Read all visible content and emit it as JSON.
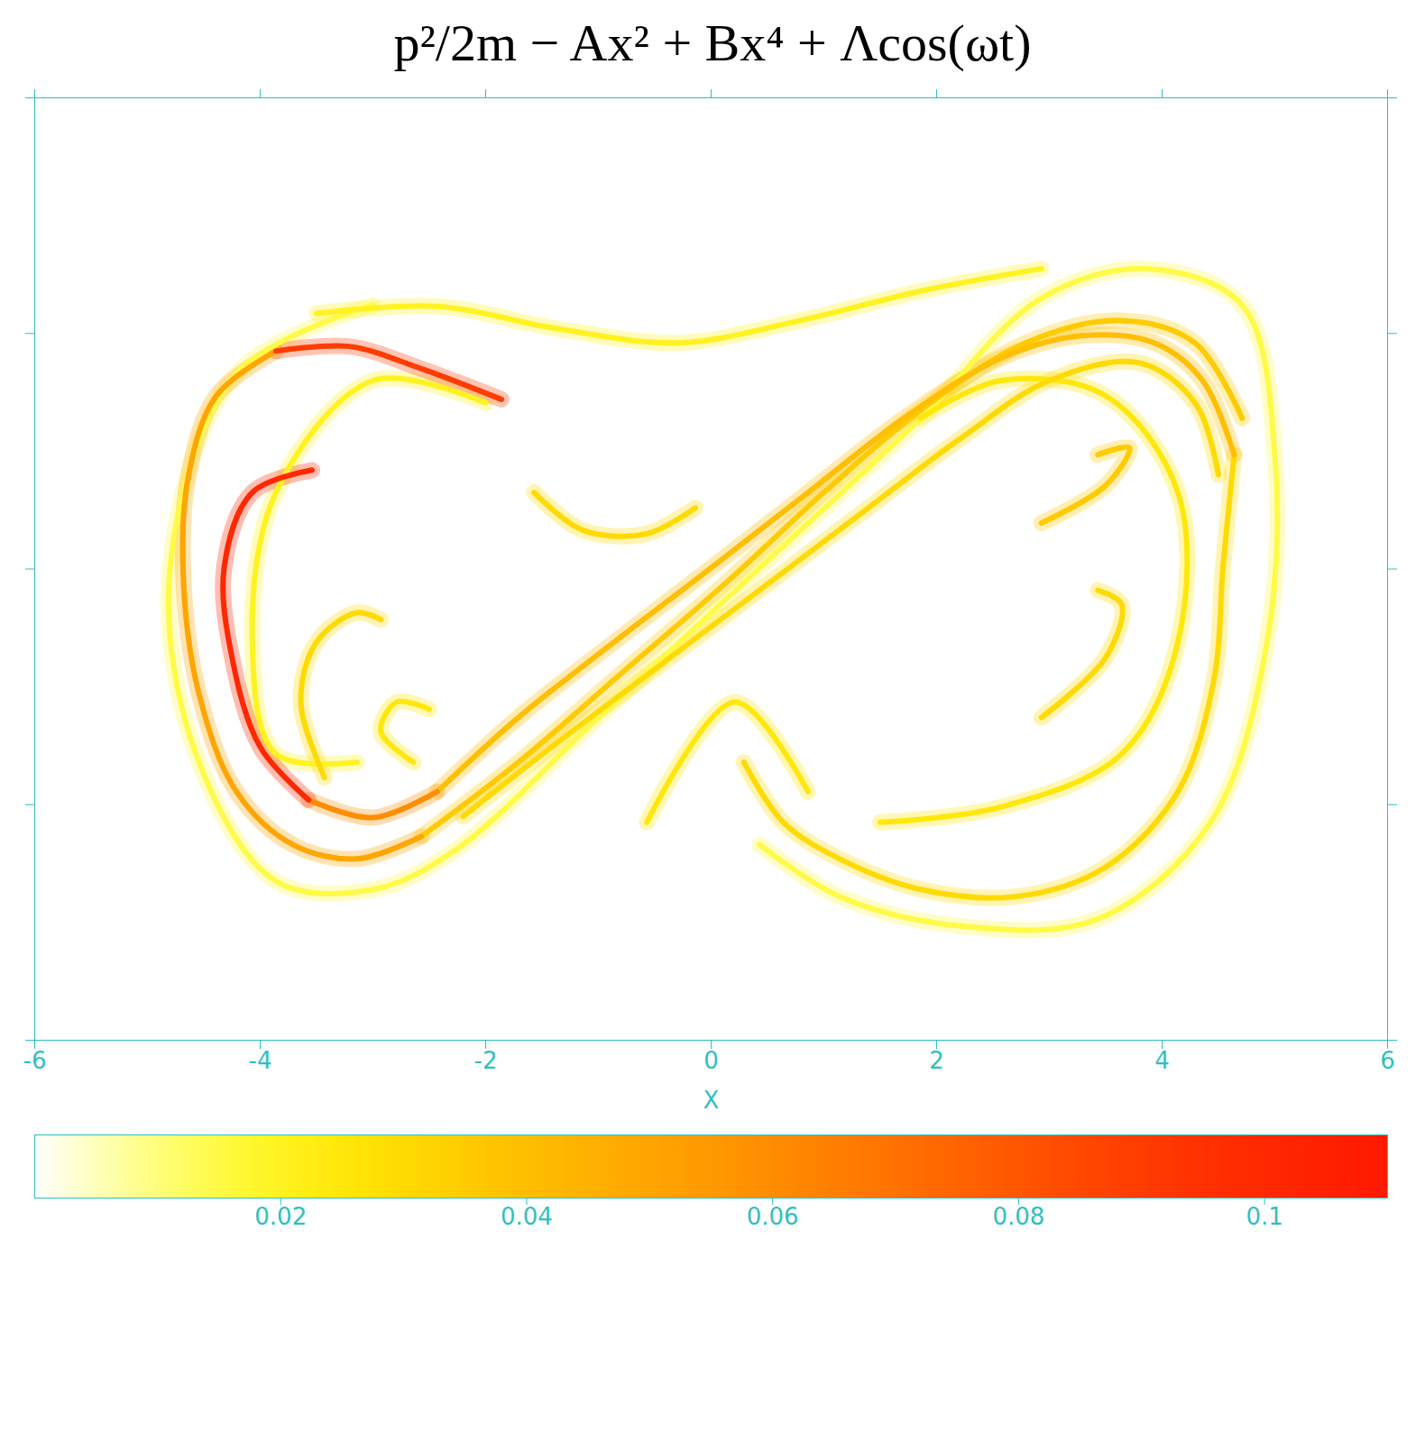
{
  "chart_data": {
    "type": "density",
    "title": "p²/2m − Ax² + Bx⁴ + Λcos(ωt)",
    "x_label": "X",
    "xlim": [
      -6,
      6
    ],
    "xticks": [
      -6,
      -4,
      -2,
      0,
      2,
      4,
      6
    ],
    "ylim": [
      -4,
      4
    ],
    "yticks": [
      -4,
      -2,
      0,
      2,
      4
    ],
    "tick_labels": "x",
    "colorbar": {
      "range": [
        0,
        0.11
      ],
      "ticks": [
        0.02,
        0.04,
        0.06,
        0.08,
        0.1
      ]
    },
    "curves": [
      {
        "value": 0.015,
        "points": [
          [
            -3.0,
            2.24
          ],
          [
            -4.21,
            1.66
          ],
          [
            -4.8,
            0.01
          ],
          [
            -4.57,
            -1.57
          ],
          [
            -3.86,
            -2.65
          ],
          [
            -3.0,
            -2.72
          ],
          [
            -2.29,
            -2.4
          ],
          [
            -1.0,
            -1.26
          ],
          [
            0.43,
            0.01
          ],
          [
            1.86,
            1.28
          ],
          [
            2.93,
            2.3
          ],
          [
            3.86,
            2.55
          ],
          [
            4.71,
            2.24
          ],
          [
            5.0,
            0.97
          ],
          [
            4.93,
            -0.62
          ],
          [
            4.43,
            -2.15
          ],
          [
            3.43,
            -2.97
          ],
          [
            2.21,
            -3.03
          ],
          [
            1.14,
            -2.78
          ],
          [
            0.43,
            -2.34
          ]
        ]
      },
      {
        "value": 0.02,
        "points": [
          [
            -3.5,
            2.17
          ],
          [
            -2.43,
            2.23
          ],
          [
            -1.36,
            2.04
          ],
          [
            -0.29,
            1.92
          ],
          [
            0.79,
            2.11
          ],
          [
            1.86,
            2.36
          ],
          [
            2.93,
            2.55
          ]
        ]
      },
      {
        "value": 0.02,
        "points": [
          [
            -3.14,
            -1.64
          ],
          [
            -3.86,
            -1.57
          ],
          [
            -4.07,
            -0.62
          ],
          [
            -3.86,
            0.65
          ],
          [
            -3.0,
            1.6
          ],
          [
            -2.0,
            1.41
          ]
        ]
      },
      {
        "value": 0.025,
        "points": [
          [
            -2.64,
            -1.64
          ],
          [
            -2.93,
            -1.38
          ],
          [
            -2.79,
            -1.13
          ],
          [
            -2.5,
            -1.19
          ]
        ]
      },
      {
        "value": 0.025,
        "points": [
          [
            -0.57,
            -2.15
          ],
          [
            0.21,
            -1.13
          ],
          [
            0.86,
            -1.89
          ]
        ]
      },
      {
        "value": 0.025,
        "points": [
          [
            1.5,
            -2.15
          ],
          [
            2.57,
            -2.02
          ],
          [
            3.64,
            -1.57
          ],
          [
            4.14,
            -0.62
          ],
          [
            4.14,
            0.65
          ],
          [
            3.5,
            1.47
          ],
          [
            2.57,
            1.6
          ],
          [
            1.86,
            1.28
          ]
        ]
      },
      {
        "value": 0.03,
        "points": [
          [
            4.64,
            0.97
          ],
          [
            4.54,
            0.01
          ],
          [
            4.46,
            -0.94
          ],
          [
            4.14,
            -1.89
          ],
          [
            3.5,
            -2.53
          ],
          [
            2.71,
            -2.78
          ],
          [
            1.86,
            -2.72
          ],
          [
            1.14,
            -2.46
          ],
          [
            0.64,
            -2.15
          ],
          [
            0.29,
            -1.64
          ]
        ]
      },
      {
        "value": 0.03,
        "points": [
          [
            -1.57,
            0.65
          ],
          [
            -1.14,
            0.33
          ],
          [
            -0.57,
            0.3
          ],
          [
            -0.14,
            0.52
          ]
        ]
      },
      {
        "value": 0.03,
        "points": [
          [
            -3.43,
            -1.77
          ],
          [
            -3.64,
            -1.13
          ],
          [
            -3.5,
            -0.62
          ],
          [
            -3.14,
            -0.37
          ],
          [
            -2.93,
            -0.43
          ]
        ]
      },
      {
        "value": 0.03,
        "points": [
          [
            2.93,
            -1.26
          ],
          [
            3.5,
            -0.75
          ],
          [
            3.64,
            -0.3
          ],
          [
            3.43,
            -0.18
          ]
        ]
      },
      {
        "value": 0.03,
        "points": [
          [
            -2.2,
            -2.1
          ],
          [
            -1.4,
            -1.5
          ],
          [
            -0.5,
            -0.85
          ],
          [
            0.4,
            -0.2
          ],
          [
            1.3,
            0.45
          ],
          [
            2.2,
            1.1
          ],
          [
            3.0,
            1.6
          ],
          [
            3.8,
            1.75
          ],
          [
            4.3,
            1.4
          ],
          [
            4.5,
            0.8
          ]
        ]
      },
      {
        "value": 0.035,
        "points": [
          [
            2.93,
            0.39
          ],
          [
            3.5,
            0.71
          ],
          [
            3.71,
            1.03
          ],
          [
            3.43,
            0.97
          ]
        ]
      },
      {
        "value": 0.035,
        "points": [
          [
            -2.57,
            -2.27
          ],
          [
            -1.71,
            -1.64
          ],
          [
            -0.79,
            -0.88
          ],
          [
            0.14,
            -0.11
          ],
          [
            1.0,
            0.65
          ],
          [
            1.86,
            1.35
          ],
          [
            2.79,
            1.92
          ],
          [
            3.64,
            2.11
          ],
          [
            4.29,
            1.92
          ],
          [
            4.71,
            1.28
          ]
        ]
      },
      {
        "value": 0.04,
        "points": [
          [
            -2.43,
            -1.89
          ],
          [
            -1.71,
            -1.26
          ],
          [
            -0.86,
            -0.62
          ],
          [
            0.0,
            0.01
          ],
          [
            0.86,
            0.65
          ],
          [
            1.71,
            1.28
          ],
          [
            2.57,
            1.79
          ],
          [
            3.29,
            1.98
          ],
          [
            3.93,
            1.92
          ],
          [
            4.36,
            1.6
          ],
          [
            4.64,
            0.97
          ]
        ]
      },
      {
        "value": 0.05,
        "points": [
          [
            -3.86,
            1.85
          ],
          [
            -4.39,
            1.47
          ],
          [
            -4.64,
            0.77
          ],
          [
            -4.68,
            -0.11
          ],
          [
            -4.54,
            -1.07
          ],
          [
            -4.21,
            -1.89
          ],
          [
            -3.71,
            -2.34
          ],
          [
            -3.14,
            -2.46
          ],
          [
            -2.57,
            -2.27
          ]
        ]
      },
      {
        "value": 0.06,
        "points": [
          [
            -3.57,
            -1.96
          ],
          [
            -3.0,
            -2.11
          ],
          [
            -2.43,
            -1.89
          ]
        ]
      },
      {
        "value": 0.09,
        "points": [
          [
            -1.86,
            1.44
          ],
          [
            -2.57,
            1.7
          ],
          [
            -3.21,
            1.89
          ],
          [
            -3.86,
            1.85
          ]
        ]
      },
      {
        "value": 0.1,
        "points": [
          [
            -3.54,
            0.84
          ],
          [
            -4.07,
            0.65
          ],
          [
            -4.32,
            0.01
          ],
          [
            -4.25,
            -0.75
          ],
          [
            -4.0,
            -1.51
          ],
          [
            -3.57,
            -1.96
          ]
        ]
      }
    ]
  }
}
